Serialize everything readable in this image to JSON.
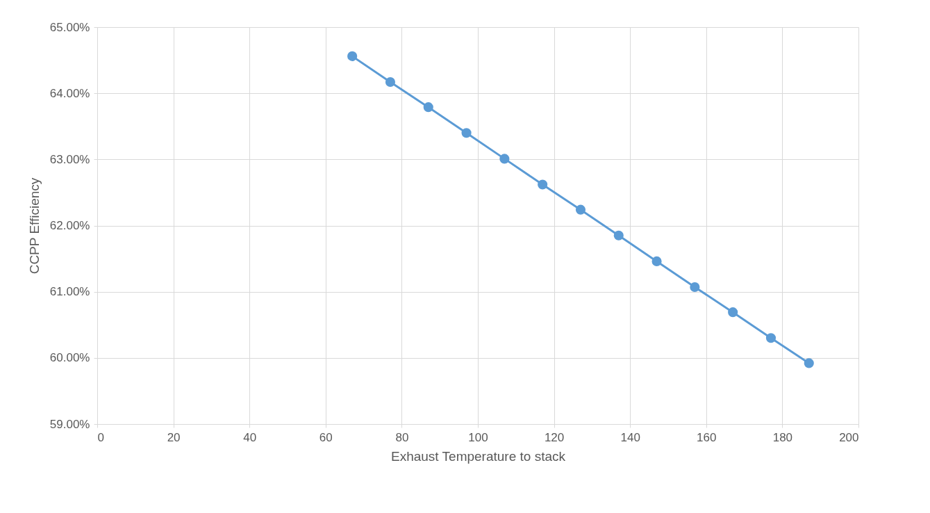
{
  "chart_data": {
    "type": "line",
    "xlabel": "Exhaust Temperature to stack",
    "ylabel": "CCPP Efficiency",
    "x": [
      67,
      77,
      87,
      97,
      107,
      117,
      127,
      137,
      147,
      157,
      167,
      177,
      187
    ],
    "series": [
      {
        "color": "#5b9bd5",
        "values": [
          64.56,
          64.17,
          63.79,
          63.4,
          63.01,
          62.62,
          62.24,
          61.85,
          61.46,
          61.07,
          60.69,
          60.3,
          59.92
        ]
      }
    ],
    "xlim": [
      0,
      200
    ],
    "xticks": [
      0,
      20,
      40,
      60,
      80,
      100,
      120,
      140,
      160,
      180,
      200
    ],
    "ylim": [
      59,
      65
    ],
    "yticks": [
      {
        "value": 59,
        "label": "59.00%"
      },
      {
        "value": 60,
        "label": "60.00%"
      },
      {
        "value": 61,
        "label": "61.00%"
      },
      {
        "value": 62,
        "label": "62.00%"
      },
      {
        "value": 63,
        "label": "63.00%"
      },
      {
        "value": 64,
        "label": "64.00%"
      },
      {
        "value": 65,
        "label": "65.00%"
      }
    ],
    "grid": true,
    "marker": "circle",
    "line_style": "solid"
  }
}
